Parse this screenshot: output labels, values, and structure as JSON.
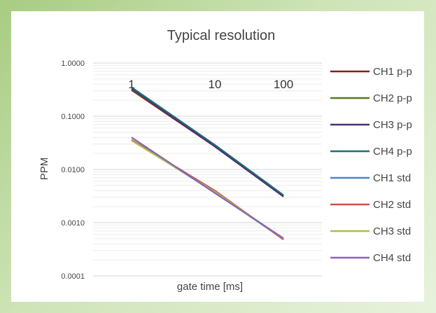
{
  "chart_data": {
    "type": "line",
    "title": "Typical resolution",
    "xlabel": "gate time [ms]",
    "ylabel": "PPM",
    "x_scale": "log",
    "y_scale": "log",
    "x": [
      1,
      10,
      100
    ],
    "x_ticks": [
      "1",
      "10",
      "100"
    ],
    "ylim": [
      0.0001,
      1
    ],
    "y_ticks": [
      "1.0000",
      "0.1000",
      "0.0100",
      "0.0010",
      "0.0001"
    ],
    "legend_position": "right",
    "series": [
      {
        "name": "CH1 p-p",
        "color": "#8b1a1a",
        "values": [
          0.31,
          0.027,
          0.0031
        ]
      },
      {
        "name": "CH2 p-p",
        "color": "#5a7a1e",
        "values": [
          0.32,
          0.028,
          0.0032
        ]
      },
      {
        "name": "CH3 p-p",
        "color": "#4a2e6e",
        "values": [
          0.33,
          0.027,
          0.0031
        ]
      },
      {
        "name": "CH4 p-p",
        "color": "#1f6e78",
        "values": [
          0.35,
          0.029,
          0.0033
        ]
      },
      {
        "name": "CH1 std",
        "color": "#4a86c8",
        "values": [
          0.036,
          0.0037,
          0.00049
        ]
      },
      {
        "name": "CH2 std",
        "color": "#d0504c",
        "values": [
          0.036,
          0.004,
          0.00048
        ]
      },
      {
        "name": "CH3 std",
        "color": "#a8c04a",
        "values": [
          0.035,
          0.0038,
          0.0005
        ]
      },
      {
        "name": "CH4 std",
        "color": "#8764b8",
        "values": [
          0.04,
          0.0036,
          0.00051
        ]
      }
    ]
  }
}
